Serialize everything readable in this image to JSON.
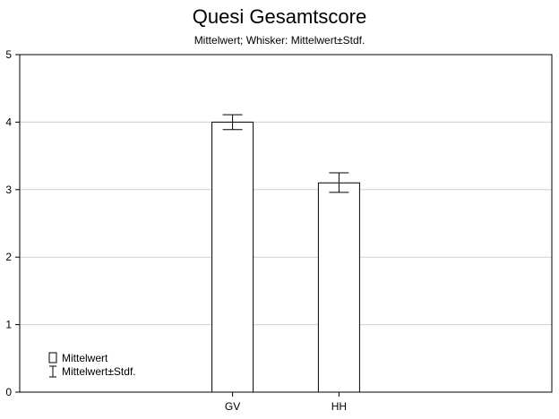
{
  "chart_data": {
    "type": "bar",
    "title": "Quesi Gesamtscore",
    "subtitle": "Mittelwert; Whisker: Mittelwert±Stdf.",
    "categories": [
      "GV",
      "HH"
    ],
    "series": [
      {
        "values": [
          4.0,
          3.1
        ],
        "error_low": [
          3.89,
          2.96
        ],
        "error_high": [
          4.11,
          3.25
        ]
      }
    ],
    "yticks": [
      0,
      1,
      2,
      3,
      4,
      5
    ],
    "ylim": [
      0,
      5
    ],
    "grid": true,
    "legend": {
      "position": "bottom-left",
      "items": [
        {
          "label": "Mittelwert",
          "symbol": "box"
        },
        {
          "label": "Mittelwert±Stdf.",
          "symbol": "whisker"
        }
      ]
    }
  }
}
